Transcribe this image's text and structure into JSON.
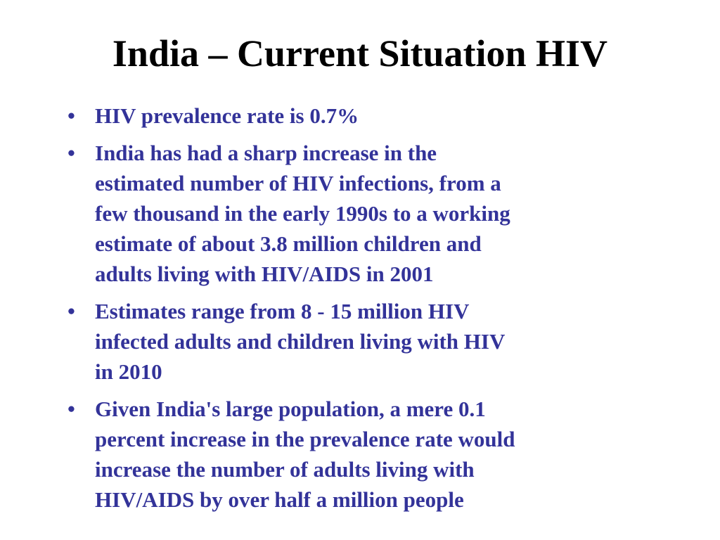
{
  "slide": {
    "title": "India – Current Situation HIV",
    "bullet_symbol": "•",
    "bullets": [
      {
        "lines": [
          "HIV prevalence rate is 0.7%"
        ]
      },
      {
        "lines": [
          "India has had a sharp increase in the",
          "estimated number of HIV infections, from a",
          "few thousand in the early 1990s to a working",
          "estimate of about 3.8 million children and",
          "adults living with HIV/AIDS in 2001"
        ]
      },
      {
        "lines": [
          "Estimates range from 8 - 15 million HIV",
          "infected adults and children living with HIV",
          "in 2010"
        ]
      },
      {
        "lines": [
          "Given India's large population, a mere 0.1",
          "percent increase in the prevalence rate would",
          "increase the number of adults living with",
          "HIV/AIDS by over half a million people"
        ]
      }
    ]
  },
  "colors": {
    "title": "#000000",
    "body_text": "#333399",
    "background": "#ffffff"
  }
}
